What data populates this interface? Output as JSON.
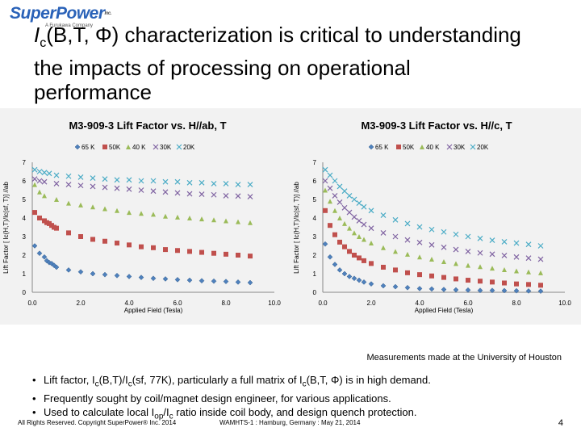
{
  "logo": {
    "name": "SuperPower",
    "inc": "Inc.",
    "tagline": "A Furukawa Company"
  },
  "title": {
    "line1_a": "I",
    "line1_sub": "c",
    "line1_b": "(B,T, Φ) characterization is critical to understanding",
    "line2": "the impacts of processing on operational",
    "line3": "performance"
  },
  "colors": {
    "65K": "#4f81bd",
    "50K": "#c0504d",
    "40K": "#9bbb59",
    "30K": "#8064a2",
    "20K": "#4bacc6"
  },
  "chart_data": [
    {
      "type": "scatter",
      "title": "M3-909-3 Lift Factor vs. H//ab, T",
      "xlabel": "Applied Field (Tesla)",
      "ylabel": "Lift Factor [ Ic(H,T)/Ic(sf, T)] //ab",
      "xlim": [
        0,
        10
      ],
      "ylim": [
        0,
        7
      ],
      "xticks": [
        "0.0",
        "2.0",
        "4.0",
        "6.0",
        "8.0",
        "10.0"
      ],
      "yticks": [
        "0",
        "1",
        "2",
        "3",
        "4",
        "5",
        "6",
        "7"
      ],
      "legend_position": "top",
      "series": [
        {
          "name": "65 K",
          "marker": "diamond",
          "color": "#4f81bd",
          "x": [
            0.1,
            0.3,
            0.5,
            0.6,
            0.7,
            0.8,
            0.9,
            1.0,
            1.5,
            2.0,
            2.5,
            3.0,
            3.5,
            4.0,
            4.5,
            5.0,
            5.5,
            6.0,
            6.5,
            7.0,
            7.5,
            8.0,
            8.5,
            9.0
          ],
          "y": [
            2.5,
            2.1,
            1.9,
            1.7,
            1.6,
            1.55,
            1.45,
            1.35,
            1.2,
            1.1,
            1.0,
            0.95,
            0.9,
            0.85,
            0.8,
            0.75,
            0.72,
            0.68,
            0.65,
            0.62,
            0.6,
            0.58,
            0.55,
            0.52
          ]
        },
        {
          "name": "50K",
          "marker": "square",
          "color": "#c0504d",
          "x": [
            0.1,
            0.3,
            0.5,
            0.6,
            0.7,
            0.8,
            0.9,
            1.0,
            1.5,
            2.0,
            2.5,
            3.0,
            3.5,
            4.0,
            4.5,
            5.0,
            5.5,
            6.0,
            6.5,
            7.0,
            7.5,
            8.0,
            8.5,
            9.0
          ],
          "y": [
            4.3,
            4.0,
            3.85,
            3.75,
            3.7,
            3.6,
            3.5,
            3.45,
            3.2,
            3.0,
            2.85,
            2.75,
            2.65,
            2.55,
            2.45,
            2.4,
            2.3,
            2.25,
            2.2,
            2.15,
            2.1,
            2.05,
            2.0,
            1.95
          ]
        },
        {
          "name": "40 K",
          "marker": "triangle",
          "color": "#9bbb59",
          "x": [
            0.1,
            0.3,
            0.5,
            1.0,
            1.5,
            2.0,
            2.5,
            3.0,
            3.5,
            4.0,
            4.5,
            5.0,
            5.5,
            6.0,
            6.5,
            7.0,
            7.5,
            8.0,
            8.5,
            9.0
          ],
          "y": [
            5.8,
            5.4,
            5.2,
            5.0,
            4.8,
            4.7,
            4.6,
            4.5,
            4.4,
            4.3,
            4.25,
            4.2,
            4.1,
            4.05,
            4.0,
            3.95,
            3.9,
            3.85,
            3.8,
            3.75
          ]
        },
        {
          "name": "30K",
          "marker": "x",
          "color": "#8064a2",
          "x": [
            0.1,
            0.3,
            0.5,
            1.0,
            1.5,
            2.0,
            2.5,
            3.0,
            3.5,
            4.0,
            4.5,
            5.0,
            5.5,
            6.0,
            6.5,
            7.0,
            7.5,
            8.0,
            8.5,
            9.0
          ],
          "y": [
            6.1,
            6.0,
            5.95,
            5.85,
            5.8,
            5.75,
            5.7,
            5.65,
            5.6,
            5.55,
            5.5,
            5.45,
            5.4,
            5.35,
            5.3,
            5.28,
            5.25,
            5.2,
            5.18,
            5.15
          ]
        },
        {
          "name": "20K",
          "marker": "x",
          "color": "#4bacc6",
          "x": [
            0.1,
            0.3,
            0.5,
            0.7,
            1.0,
            1.5,
            2.0,
            2.5,
            3.0,
            3.5,
            4.0,
            4.5,
            5.0,
            5.5,
            6.0,
            6.5,
            7.0,
            7.5,
            8.0,
            8.5,
            9.0
          ],
          "y": [
            6.6,
            6.5,
            6.45,
            6.4,
            6.3,
            6.25,
            6.2,
            6.15,
            6.1,
            6.05,
            6.05,
            6.0,
            6.0,
            5.95,
            5.95,
            5.9,
            5.9,
            5.85,
            5.85,
            5.8,
            5.8
          ]
        }
      ]
    },
    {
      "type": "scatter",
      "title": "M3-909-3 Lift Factor vs. H//c, T",
      "xlabel": "Applied Field (Tesla)",
      "ylabel": "Lift Factor [ Ic(H,T)/Ic(sf, T)] //ab",
      "xlim": [
        0,
        10
      ],
      "ylim": [
        0,
        7
      ],
      "xticks": [
        "0.0",
        "2.0",
        "4.0",
        "6.0",
        "8.0",
        "10.0"
      ],
      "yticks": [
        "0",
        "1",
        "2",
        "3",
        "4",
        "5",
        "6",
        "7"
      ],
      "legend_position": "top",
      "series": [
        {
          "name": "65 K",
          "marker": "diamond",
          "color": "#4f81bd",
          "x": [
            0.1,
            0.3,
            0.5,
            0.7,
            0.9,
            1.1,
            1.3,
            1.5,
            1.7,
            2.0,
            2.5,
            3.0,
            3.5,
            4.0,
            4.5,
            5.0,
            5.5,
            6.0,
            6.5,
            7.0,
            7.5,
            8.0,
            8.5,
            9.0
          ],
          "y": [
            2.6,
            1.9,
            1.5,
            1.2,
            1.0,
            0.85,
            0.75,
            0.65,
            0.55,
            0.45,
            0.35,
            0.3,
            0.25,
            0.2,
            0.18,
            0.15,
            0.13,
            0.12,
            0.1,
            0.1,
            0.09,
            0.08,
            0.07,
            0.06
          ]
        },
        {
          "name": "50K",
          "marker": "square",
          "color": "#c0504d",
          "x": [
            0.1,
            0.3,
            0.5,
            0.7,
            0.9,
            1.1,
            1.3,
            1.5,
            1.7,
            2.0,
            2.5,
            3.0,
            3.5,
            4.0,
            4.5,
            5.0,
            5.5,
            6.0,
            6.5,
            7.0,
            7.5,
            8.0,
            8.5,
            9.0
          ],
          "y": [
            4.4,
            3.6,
            3.1,
            2.7,
            2.45,
            2.2,
            2.0,
            1.85,
            1.7,
            1.55,
            1.35,
            1.2,
            1.05,
            0.95,
            0.88,
            0.8,
            0.72,
            0.65,
            0.6,
            0.55,
            0.5,
            0.45,
            0.42,
            0.38
          ]
        },
        {
          "name": "40 K",
          "marker": "triangle",
          "color": "#9bbb59",
          "x": [
            0.1,
            0.3,
            0.5,
            0.7,
            0.9,
            1.1,
            1.3,
            1.5,
            1.7,
            2.0,
            2.5,
            3.0,
            3.5,
            4.0,
            4.5,
            5.0,
            5.5,
            6.0,
            6.5,
            7.0,
            7.5,
            8.0,
            8.5,
            9.0
          ],
          "y": [
            5.5,
            4.9,
            4.4,
            4.0,
            3.7,
            3.45,
            3.2,
            3.0,
            2.85,
            2.65,
            2.4,
            2.2,
            2.05,
            1.9,
            1.78,
            1.65,
            1.55,
            1.45,
            1.38,
            1.3,
            1.22,
            1.15,
            1.1,
            1.05
          ]
        },
        {
          "name": "30K",
          "marker": "x",
          "color": "#8064a2",
          "x": [
            0.1,
            0.3,
            0.5,
            0.7,
            0.9,
            1.1,
            1.3,
            1.5,
            1.7,
            2.0,
            2.5,
            3.0,
            3.5,
            4.0,
            4.5,
            5.0,
            5.5,
            6.0,
            6.5,
            7.0,
            7.5,
            8.0,
            8.5,
            9.0
          ],
          "y": [
            6.0,
            5.6,
            5.2,
            4.85,
            4.55,
            4.3,
            4.05,
            3.85,
            3.65,
            3.45,
            3.2,
            3.0,
            2.82,
            2.68,
            2.55,
            2.42,
            2.3,
            2.2,
            2.12,
            2.05,
            1.98,
            1.9,
            1.84,
            1.78
          ]
        },
        {
          "name": "20K",
          "marker": "x",
          "color": "#4bacc6",
          "x": [
            0.1,
            0.3,
            0.5,
            0.7,
            0.9,
            1.1,
            1.3,
            1.5,
            1.7,
            2.0,
            2.5,
            3.0,
            3.5,
            4.0,
            4.5,
            5.0,
            5.5,
            6.0,
            6.5,
            7.0,
            7.5,
            8.0,
            8.5,
            9.0
          ],
          "y": [
            6.6,
            6.3,
            6.0,
            5.7,
            5.45,
            5.2,
            5.0,
            4.8,
            4.6,
            4.4,
            4.15,
            3.9,
            3.7,
            3.52,
            3.38,
            3.25,
            3.12,
            3.0,
            2.9,
            2.8,
            2.72,
            2.65,
            2.58,
            2.5
          ]
        }
      ]
    }
  ],
  "caption": "Measurements made at the University of Houston",
  "bullets": [
    {
      "p1": "Lift factor, I",
      "s1": "c",
      "p2": "(B,T)/I",
      "s2": "c",
      "p3": "(sf, 77K), particularly a full matrix of I",
      "s3": "c",
      "p4": "(B,T, Φ) is in high demand."
    },
    {
      "text": "Frequently sought by coil/magnet design engineer, for various applications."
    },
    {
      "p1": "Used to calculate local I",
      "s1": "op",
      "p2": "/I",
      "s2": "c",
      "p3": " ratio inside coil body, and design quench protection."
    }
  ],
  "footer": {
    "copyright": "All Rights Reserved. Copyright SuperPower® Inc. 2014",
    "event": "WAMHTS-1 : Hamburg, Germany : May 21, 2014",
    "page": "4"
  }
}
